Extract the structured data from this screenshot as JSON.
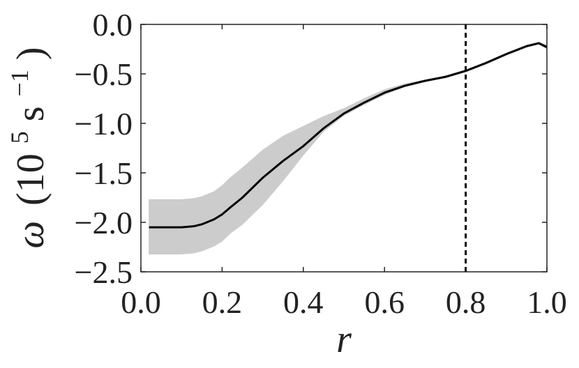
{
  "chart_data": {
    "type": "line",
    "xlabel": "r",
    "ylabel": {
      "symbol": "ω",
      "open": "(10",
      "exp": "5",
      "unit": " s",
      "unit_exp": "−1",
      "close": ")"
    },
    "xlim": [
      0.0,
      1.0
    ],
    "ylim": [
      -2.5,
      0.0
    ],
    "x_ticks": [
      0.0,
      0.2,
      0.4,
      0.6,
      0.8,
      1.0
    ],
    "x_tick_labels": [
      "0.0",
      "0.2",
      "0.4",
      "0.6",
      "0.8",
      "1.0"
    ],
    "y_ticks": [
      0.0,
      -0.5,
      -1.0,
      -1.5,
      -2.0,
      -2.5
    ],
    "y_tick_labels": [
      "0.0",
      "−0.5",
      "−1.0",
      "−1.5",
      "−2.0",
      "−2.5"
    ],
    "grid": false,
    "vline": {
      "x": 0.8,
      "style": "dashed",
      "color": "#000000"
    },
    "series": [
      {
        "x": [
          0.02,
          0.05,
          0.1,
          0.13,
          0.15,
          0.18,
          0.2,
          0.22,
          0.25,
          0.3,
          0.35,
          0.4,
          0.45,
          0.5,
          0.55,
          0.6,
          0.65,
          0.7,
          0.75,
          0.8,
          0.85,
          0.9,
          0.95,
          0.98,
          1.0
        ],
        "y": [
          -2.05,
          -2.05,
          -2.05,
          -2.04,
          -2.02,
          -1.97,
          -1.92,
          -1.85,
          -1.75,
          -1.55,
          -1.38,
          -1.23,
          -1.05,
          -0.9,
          -0.79,
          -0.69,
          -0.62,
          -0.57,
          -0.53,
          -0.47,
          -0.39,
          -0.3,
          -0.22,
          -0.19,
          -0.23
        ],
        "lower": [
          -2.32,
          -2.32,
          -2.32,
          -2.31,
          -2.29,
          -2.24,
          -2.19,
          -2.11,
          -2.02,
          -1.82,
          -1.58,
          -1.32,
          -1.08,
          -0.92,
          -0.81,
          -0.71,
          -0.63,
          -0.58,
          -0.54,
          -0.48,
          -0.4,
          -0.31,
          -0.23,
          -0.2,
          -0.25
        ],
        "upper": [
          -1.77,
          -1.77,
          -1.77,
          -1.76,
          -1.74,
          -1.69,
          -1.63,
          -1.55,
          -1.45,
          -1.27,
          -1.13,
          -1.03,
          -0.93,
          -0.85,
          -0.75,
          -0.66,
          -0.6,
          -0.56,
          -0.52,
          -0.46,
          -0.38,
          -0.29,
          -0.21,
          -0.18,
          -0.21
        ],
        "color": "#000000",
        "band_color": "#cccccc"
      }
    ]
  }
}
